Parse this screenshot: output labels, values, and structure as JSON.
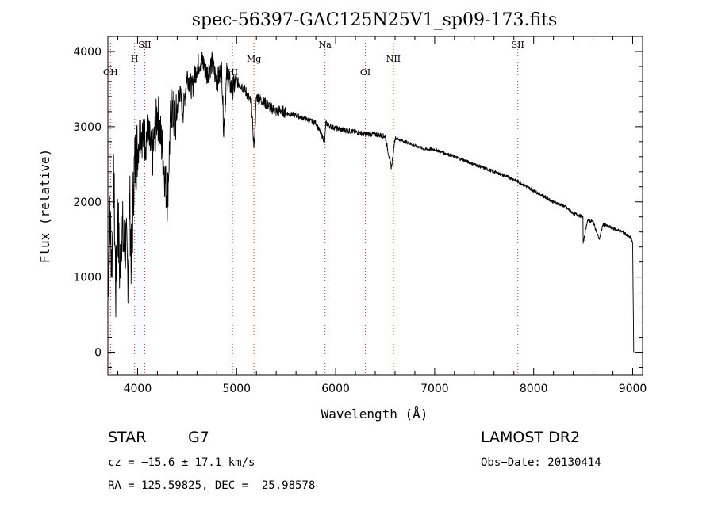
{
  "chart_data": {
    "type": "line",
    "title": "spec-56397-GAC125N25V1_sp09-173.fits",
    "xlabel": "Wavelength (Å)",
    "ylabel": "Flux (relative)",
    "xlim": [
      3700,
      9100
    ],
    "ylim": [
      -300,
      4200
    ],
    "x_ticks": [
      4000,
      5000,
      6000,
      7000,
      8000,
      9000
    ],
    "y_ticks": [
      0,
      1000,
      2000,
      3000,
      4000
    ],
    "grid": false,
    "series": [
      {
        "x": [
          3700,
          3720,
          3740,
          3760,
          3780,
          3800,
          3820,
          3840,
          3860,
          3880,
          3900,
          3920,
          3940,
          3960,
          3980,
          4000,
          4030,
          4060,
          4100,
          4150,
          4200,
          4250,
          4300,
          4340,
          4380,
          4420,
          4460,
          4500,
          4550,
          4600,
          4650,
          4700,
          4750,
          4800,
          4850,
          4870,
          4900,
          4950,
          5000,
          5050,
          5100,
          5150,
          5175,
          5200,
          5250,
          5300,
          5350,
          5400,
          5450,
          5500,
          5600,
          5700,
          5800,
          5890,
          5900,
          5950,
          6000,
          6100,
          6200,
          6300,
          6400,
          6500,
          6563,
          6600,
          6700,
          6800,
          6900,
          7000,
          7200,
          7400,
          7600,
          7800,
          8000,
          8200,
          8300,
          8400,
          8498,
          8500,
          8542,
          8600,
          8662,
          8700,
          8800,
          8900,
          8950,
          8980,
          9000,
          9010
        ],
        "y": [
          900,
          1800,
          1200,
          2300,
          800,
          1900,
          1000,
          1700,
          1400,
          1500,
          1000,
          2000,
          1100,
          2300,
          2600,
          2700,
          3000,
          2800,
          2900,
          2600,
          3200,
          2700,
          2000,
          3300,
          3000,
          3500,
          3200,
          3700,
          3500,
          3800,
          3900,
          3700,
          3850,
          3600,
          3750,
          2950,
          3700,
          3500,
          3600,
          3550,
          3450,
          3300,
          2700,
          3400,
          3350,
          3300,
          3250,
          3200,
          3220,
          3180,
          3150,
          3100,
          3050,
          2800,
          3050,
          3000,
          2980,
          2950,
          2930,
          2900,
          2900,
          2870,
          2450,
          2850,
          2800,
          2750,
          2700,
          2700,
          2600,
          2500,
          2400,
          2300,
          2150,
          2000,
          1950,
          1850,
          1800,
          1450,
          1750,
          1740,
          1500,
          1700,
          1650,
          1600,
          1550,
          1520,
          1450,
          0
        ]
      }
    ],
    "reference_lines": [
      {
        "label": "OH",
        "x": 3727
      },
      {
        "label": "H",
        "x": 3970
      },
      {
        "label": "SII",
        "x": 4072
      },
      {
        "label": "HI",
        "x": 4959
      },
      {
        "label": "Mg",
        "x": 5175
      },
      {
        "label": "Na",
        "x": 5893
      },
      {
        "label": "OI",
        "x": 6300
      },
      {
        "label": "NII",
        "x": 6584
      },
      {
        "label": "SII",
        "x": 7840
      }
    ]
  },
  "info": {
    "class_label": "STAR",
    "subclass": "G7",
    "cz_text": "cz = −15.6 ± 17.1 km/s",
    "radec_text": "RA = 125.59825, DEC =  25.98578",
    "survey": "LAMOST DR2",
    "obs_date": "Obs−Date: 20130414"
  }
}
